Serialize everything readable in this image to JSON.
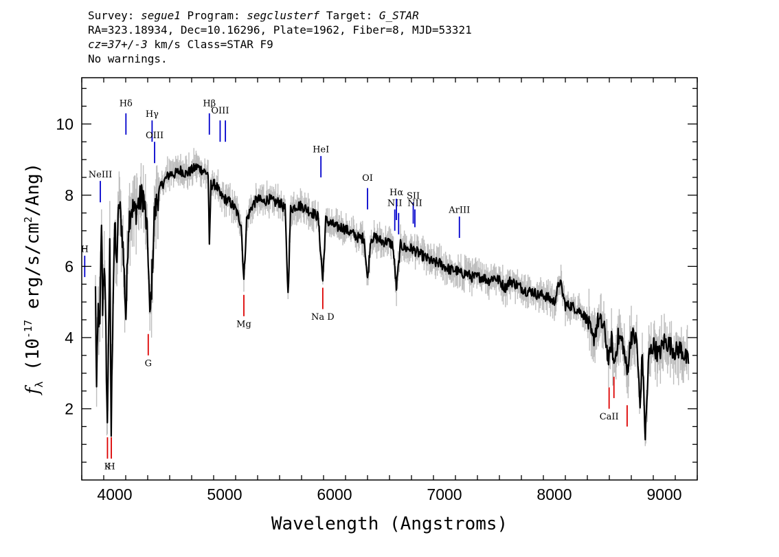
{
  "header": {
    "survey_key": "Survey:",
    "survey": "segue1",
    "program_key": "Program:",
    "program": "segclusterf",
    "target_key": "Target:",
    "target": "G_STAR",
    "line2": "RA=323.18934, Dec=10.16296, Plate=1962, Fiber=8, MJD=53321",
    "redshift": "cz=37+/-3",
    "line3_rest": " km/s Class=STAR F9",
    "line4": "No warnings."
  },
  "colors": {
    "flux": "#000000",
    "error_band": "#bdbdbd",
    "emission": "#0000cc",
    "absorption": "#dd0000"
  },
  "chart_data": {
    "type": "line",
    "title": "",
    "xlabel": "Wavelength (Angstroms)",
    "ylabel": "f_λ (10^-17 erg/s/cm^2/Ang)",
    "xlim": [
      3700,
      9300
    ],
    "ylim": [
      0,
      11.3
    ],
    "x_ticks": [
      4000,
      5000,
      6000,
      7000,
      8000,
      9000
    ],
    "y_ticks": [
      2,
      4,
      6,
      8,
      10
    ],
    "x_minor_step": 200,
    "y_minor_step": 0.5,
    "grid": false,
    "series": [
      {
        "name": "",
        "style": "black line with grey noise envelope",
        "points": [
          [
            3825,
            5.3
          ],
          [
            3835,
            2.5
          ],
          [
            3850,
            4.8
          ],
          [
            3865,
            4.2
          ],
          [
            3880,
            7.3
          ],
          [
            3890,
            4.9
          ],
          [
            3905,
            6.2
          ],
          [
            3920,
            4.0
          ],
          [
            3933,
            1.4
          ],
          [
            3945,
            4.5
          ],
          [
            3955,
            6.4
          ],
          [
            3968,
            1.3
          ],
          [
            3985,
            5.3
          ],
          [
            4000,
            7.2
          ],
          [
            4015,
            6.0
          ],
          [
            4040,
            7.8
          ],
          [
            4070,
            6.9
          ],
          [
            4102,
            4.6
          ],
          [
            4125,
            7.2
          ],
          [
            4150,
            7.7
          ],
          [
            4180,
            7.5
          ],
          [
            4220,
            7.8
          ],
          [
            4260,
            8.0
          ],
          [
            4290,
            7.1
          ],
          [
            4305,
            6.3
          ],
          [
            4320,
            4.4
          ],
          [
            4340,
            5.8
          ],
          [
            4360,
            7.4
          ],
          [
            4400,
            8.1
          ],
          [
            4450,
            8.4
          ],
          [
            4500,
            8.6
          ],
          [
            4550,
            8.6
          ],
          [
            4600,
            8.7
          ],
          [
            4650,
            8.6
          ],
          [
            4700,
            8.7
          ],
          [
            4750,
            8.8
          ],
          [
            4800,
            8.7
          ],
          [
            4850,
            8.6
          ],
          [
            4861,
            6.5
          ],
          [
            4875,
            8.3
          ],
          [
            4920,
            8.3
          ],
          [
            4960,
            8.0
          ],
          [
            5000,
            7.9
          ],
          [
            5050,
            7.8
          ],
          [
            5100,
            7.6
          ],
          [
            5150,
            7.2
          ],
          [
            5175,
            5.6
          ],
          [
            5200,
            7.3
          ],
          [
            5250,
            7.7
          ],
          [
            5300,
            7.9
          ],
          [
            5350,
            7.8
          ],
          [
            5400,
            7.9
          ],
          [
            5450,
            7.8
          ],
          [
            5500,
            7.8
          ],
          [
            5550,
            7.6
          ],
          [
            5577,
            5.2
          ],
          [
            5600,
            7.6
          ],
          [
            5650,
            7.7
          ],
          [
            5700,
            7.7
          ],
          [
            5750,
            7.6
          ],
          [
            5800,
            7.5
          ],
          [
            5850,
            7.4
          ],
          [
            5893,
            5.6
          ],
          [
            5920,
            7.3
          ],
          [
            5970,
            7.2
          ],
          [
            6020,
            7.1
          ],
          [
            6070,
            7.1
          ],
          [
            6120,
            7.0
          ],
          [
            6170,
            6.9
          ],
          [
            6220,
            6.8
          ],
          [
            6270,
            6.8
          ],
          [
            6300,
            5.6
          ],
          [
            6330,
            6.8
          ],
          [
            6380,
            6.8
          ],
          [
            6430,
            6.7
          ],
          [
            6480,
            6.7
          ],
          [
            6530,
            6.6
          ],
          [
            6563,
            5.4
          ],
          [
            6600,
            6.6
          ],
          [
            6650,
            6.5
          ],
          [
            6700,
            6.5
          ],
          [
            6750,
            6.4
          ],
          [
            6800,
            6.3
          ],
          [
            6850,
            6.2
          ],
          [
            6900,
            6.1
          ],
          [
            6950,
            6.1
          ],
          [
            7000,
            6.0
          ],
          [
            7050,
            5.9
          ],
          [
            7100,
            5.9
          ],
          [
            7150,
            5.8
          ],
          [
            7200,
            5.8
          ],
          [
            7250,
            5.7
          ],
          [
            7300,
            5.7
          ],
          [
            7350,
            5.7
          ],
          [
            7400,
            5.6
          ],
          [
            7450,
            5.7
          ],
          [
            7500,
            5.6
          ],
          [
            7550,
            5.4
          ],
          [
            7600,
            5.6
          ],
          [
            7650,
            5.5
          ],
          [
            7700,
            5.4
          ],
          [
            7750,
            5.3
          ],
          [
            7800,
            5.3
          ],
          [
            7850,
            5.2
          ],
          [
            7900,
            5.2
          ],
          [
            7950,
            5.1
          ],
          [
            8000,
            5.0
          ],
          [
            8050,
            5.6
          ],
          [
            8100,
            4.9
          ],
          [
            8150,
            4.9
          ],
          [
            8200,
            4.8
          ],
          [
            8250,
            4.7
          ],
          [
            8300,
            4.5
          ],
          [
            8350,
            3.9
          ],
          [
            8400,
            4.5
          ],
          [
            8450,
            4.3
          ],
          [
            8498,
            3.3
          ],
          [
            8520,
            4.0
          ],
          [
            8542,
            3.2
          ],
          [
            8580,
            4.0
          ],
          [
            8620,
            3.9
          ],
          [
            8662,
            3.0
          ],
          [
            8700,
            4.1
          ],
          [
            8750,
            3.9
          ],
          [
            8780,
            2.0
          ],
          [
            8800,
            3.6
          ],
          [
            8827,
            1.2
          ],
          [
            8860,
            3.5
          ],
          [
            8900,
            3.8
          ],
          [
            8950,
            3.5
          ],
          [
            9000,
            3.9
          ],
          [
            9050,
            3.8
          ],
          [
            9100,
            3.6
          ],
          [
            9150,
            3.7
          ],
          [
            9200,
            3.4
          ],
          [
            9220,
            3.3
          ]
        ]
      }
    ],
    "emission_lines": [
      {
        "label": "H",
        "wavelength": 3727,
        "y_bottom": 5.7,
        "y_top": 6.3,
        "label_y": 6.4
      },
      {
        "label": "NeIII",
        "wavelength": 3869,
        "y_bottom": 7.8,
        "y_top": 8.4,
        "label_y": 8.5
      },
      {
        "label": "Hδ",
        "wavelength": 4102,
        "y_bottom": 9.7,
        "y_top": 10.3,
        "label_y": 10.5
      },
      {
        "label": "Hγ",
        "wavelength": 4340,
        "y_bottom": 9.5,
        "y_top": 10.1,
        "label_y": 10.2
      },
      {
        "label": "OIII",
        "wavelength": 4363,
        "y_bottom": 8.9,
        "y_top": 9.5,
        "label_y": 9.6
      },
      {
        "label": "Hβ",
        "wavelength": 4861,
        "y_bottom": 9.7,
        "y_top": 10.3,
        "label_y": 10.5
      },
      {
        "label": "OIII",
        "wavelength": 4959,
        "y_bottom": 9.5,
        "y_top": 10.1,
        "label_y": 10.3
      },
      {
        "label": "",
        "wavelength": 5007,
        "y_bottom": 9.5,
        "y_top": 10.1,
        "label_y": 10.3
      },
      {
        "label": "HeI",
        "wavelength": 5876,
        "y_bottom": 8.5,
        "y_top": 9.1,
        "label_y": 9.2
      },
      {
        "label": "OI",
        "wavelength": 6300,
        "y_bottom": 7.6,
        "y_top": 8.2,
        "label_y": 8.4
      },
      {
        "label": "NII",
        "wavelength": 6548,
        "y_bottom": 7.0,
        "y_top": 7.6,
        "label_y": 7.7
      },
      {
        "label": "Hα",
        "wavelength": 6563,
        "y_bottom": 7.3,
        "y_top": 7.9,
        "label_y": 8.0
      },
      {
        "label": "",
        "wavelength": 6583,
        "y_bottom": 6.9,
        "y_top": 7.5,
        "label_y": 7.6
      },
      {
        "label": "SII",
        "wavelength": 6716,
        "y_bottom": 7.2,
        "y_top": 7.8,
        "label_y": 7.9
      },
      {
        "label": "NII",
        "wavelength": 6731,
        "y_bottom": 7.1,
        "y_top": 7.6,
        "label_y": 7.7
      },
      {
        "label": "ArIII",
        "wavelength": 7136,
        "y_bottom": 6.8,
        "y_top": 7.4,
        "label_y": 7.5
      }
    ],
    "absorption_lines": [
      {
        "label": "K",
        "wavelength": 3934,
        "y_bottom": 0.6,
        "y_top": 1.2,
        "label_y": 0.3
      },
      {
        "label": "H",
        "wavelength": 3969,
        "y_bottom": 0.6,
        "y_top": 1.2,
        "label_y": 0.3
      },
      {
        "label": "G",
        "wavelength": 4305,
        "y_bottom": 3.5,
        "y_top": 4.1,
        "label_y": 3.2
      },
      {
        "label": "Mg",
        "wavelength": 5175,
        "y_bottom": 4.6,
        "y_top": 5.2,
        "label_y": 4.3
      },
      {
        "label": "Na D",
        "wavelength": 5893,
        "y_bottom": 4.8,
        "y_top": 5.4,
        "label_y": 4.5
      },
      {
        "label": "CaII",
        "wavelength": 8498,
        "y_bottom": 2.0,
        "y_top": 2.6,
        "label_y": 1.7
      },
      {
        "label": "",
        "wavelength": 8542,
        "y_bottom": 2.3,
        "y_top": 2.9,
        "label_y": 2.0
      },
      {
        "label": "",
        "wavelength": 8662,
        "y_bottom": 1.5,
        "y_top": 2.1,
        "label_y": 1.2
      }
    ]
  }
}
